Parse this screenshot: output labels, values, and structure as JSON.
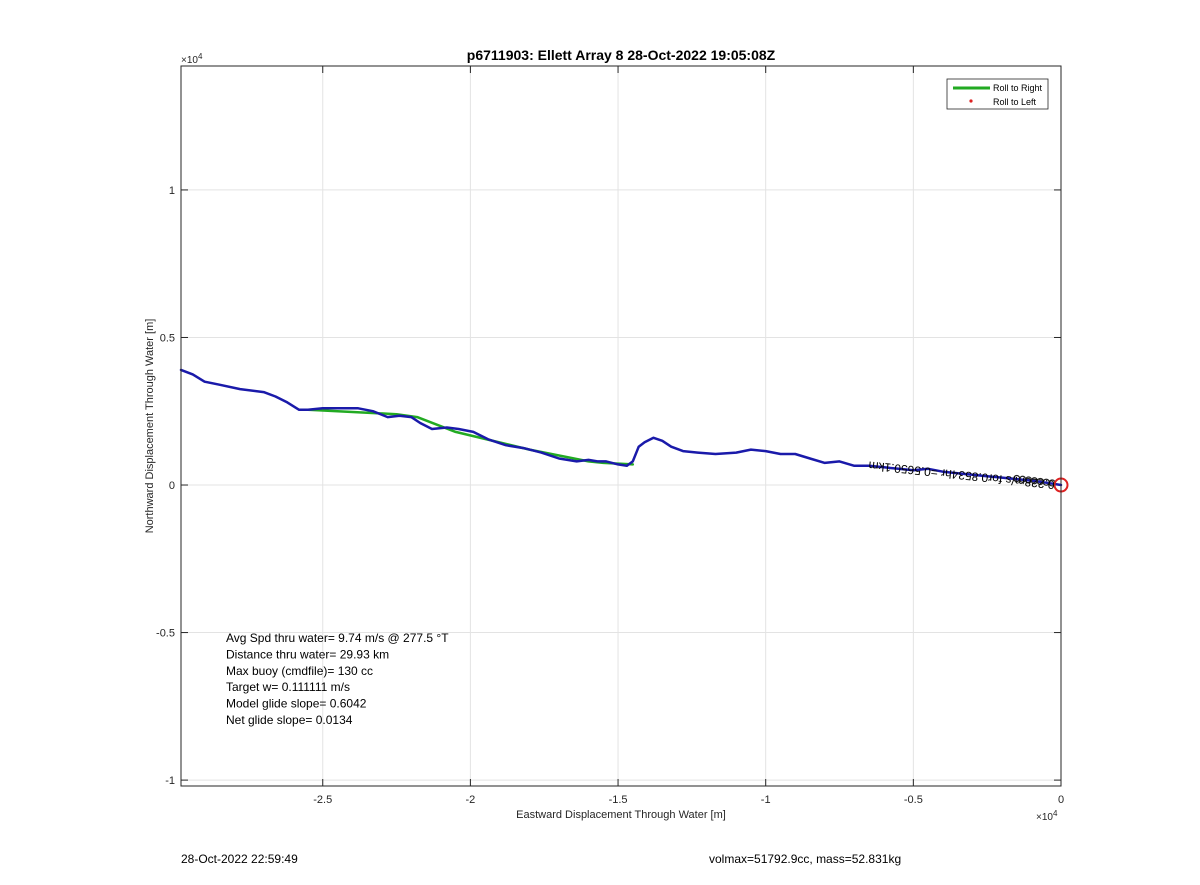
{
  "chart_data": {
    "type": "line",
    "title": "p6711903: Ellett Array 8 28-Oct-2022 19:05:08Z",
    "xlabel": "Eastward Displacement Through Water [m]",
    "ylabel": "Northward Displacement Through Water [m]",
    "xlim": [
      -29800,
      0
    ],
    "ylim": [
      -10200,
      14200
    ],
    "x_ticks": [
      -25000,
      -20000,
      -15000,
      -10000,
      -5000,
      0
    ],
    "x_tick_labels": [
      "-2.5",
      "-2",
      "-1.5",
      "-1",
      "-0.5",
      "0"
    ],
    "y_ticks": [
      -10000,
      -5000,
      0,
      5000,
      10000
    ],
    "y_tick_labels": [
      "-1",
      "-0.5",
      "0",
      "0.5",
      "1"
    ],
    "x_exponent": "4",
    "y_exponent": "4",
    "axis_multiplier": "×10",
    "grid": true,
    "legend_position": "top-right",
    "legend": [
      {
        "label": "Roll to Right",
        "color": "#22aa22"
      },
      {
        "label": "Roll to Left",
        "color": "#dd2222"
      }
    ],
    "series": [
      {
        "name": "Roll to Right",
        "color": "#22aa22",
        "x": [
          -25500,
          -22500,
          -21800,
          -20500,
          -18000,
          -16000,
          -15500,
          -14500
        ],
        "y": [
          2550,
          2400,
          2300,
          1800,
          1200,
          800,
          750,
          700
        ]
      },
      {
        "color": "#1a1aaa",
        "x": [
          -29800,
          -29400,
          -29000,
          -28500,
          -27800,
          -27000,
          -26600,
          -26200,
          -25800,
          -25500,
          -25000,
          -24500,
          -23800,
          -23300,
          -22800,
          -22400,
          -22000,
          -21700,
          -21300,
          -20800,
          -20400,
          -19900,
          -19400,
          -18800,
          -18200,
          -17600,
          -17000,
          -16400,
          -16000,
          -15700,
          -15400,
          -15000,
          -14700,
          -14500,
          -14300,
          -14100,
          -13800,
          -13500,
          -13200,
          -12800,
          -12300,
          -11700,
          -11000,
          -10500,
          -10000,
          -9500,
          -9000,
          -8500,
          -8000,
          -7500,
          -7000,
          -6500,
          -6000,
          -5500,
          -5000,
          -4500,
          -4000,
          -3500,
          -3000,
          -2500,
          -2000,
          -1500,
          -1000,
          -500,
          0
        ],
        "y": [
          3900,
          3750,
          3500,
          3400,
          3250,
          3150,
          3000,
          2800,
          2550,
          2550,
          2600,
          2600,
          2600,
          2500,
          2300,
          2350,
          2300,
          2100,
          1900,
          1950,
          1900,
          1800,
          1550,
          1350,
          1250,
          1100,
          900,
          800,
          850,
          800,
          800,
          700,
          650,
          800,
          1300,
          1450,
          1600,
          1500,
          1300,
          1150,
          1100,
          1050,
          1100,
          1200,
          1150,
          1050,
          1050,
          900,
          750,
          800,
          650,
          650,
          600,
          550,
          500,
          550,
          450,
          400,
          350,
          300,
          250,
          200,
          150,
          80,
          0
        ]
      }
    ],
    "end_marker": {
      "x": 0,
      "y": 0,
      "color": "#dd2222"
    },
    "annotation": "0.228m/s for0.8534hr =0.5650.1km",
    "stats": [
      "Avg Spd thru water=  9.74 m/s @ 277.5 °T",
      "Distance thru water= 29.93 km",
      "Max buoy (cmdfile)= 130 cc",
      "Target w= 0.111111 m/s",
      "Model glide slope= 0.6042",
      "Net glide slope= 0.0134"
    ]
  },
  "footer": {
    "timestamp": "28-Oct-2022 22:59:49",
    "vol_mass": "volmax=51792.9cc, mass=52.831kg"
  }
}
